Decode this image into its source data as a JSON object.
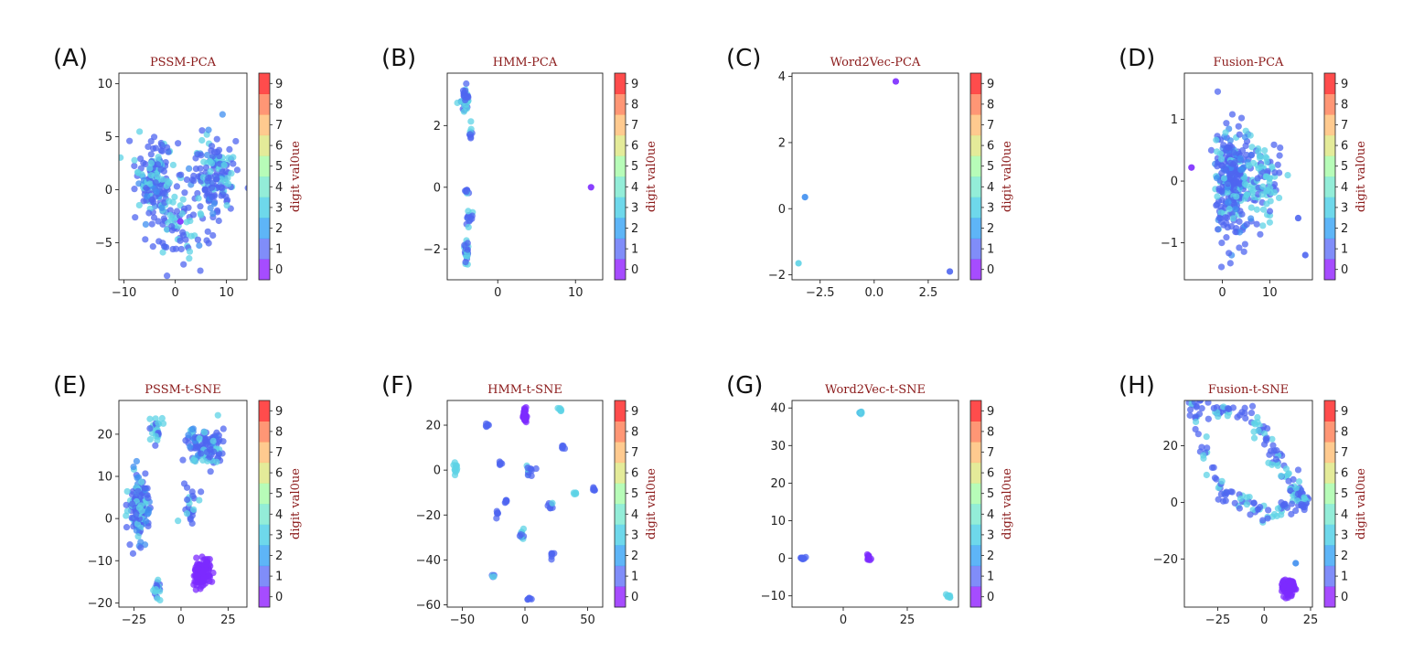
{
  "figure": {
    "colorbar_label": "digit val0ue",
    "colorbar_ticks": [
      "0",
      "1",
      "2",
      "3",
      "4",
      "5",
      "6",
      "7",
      "8",
      "9"
    ],
    "colormap": [
      "#8000ff",
      "#4a5cf7",
      "#1996f3",
      "#30c8e2",
      "#65e5c8",
      "#98fb9a",
      "#d8e26d",
      "#ffb360",
      "#ff6a3a",
      "#ff0000"
    ],
    "title_color": "#8b1a1a",
    "point_palette": {
      "violet": "#7c2bff",
      "blue": "#4f66f0",
      "midblue": "#3f8ff0",
      "cyan": "#5ed3e6"
    }
  },
  "chart_data": [
    {
      "panel": "(A)",
      "title": "PSSM-PCA",
      "type": "scatter",
      "xlim": [
        -11,
        14
      ],
      "ylim": [
        -8.5,
        11
      ],
      "xticks": [
        -10,
        0,
        10
      ],
      "yticks": [
        -5,
        0,
        5,
        10
      ],
      "clusters": [
        {
          "center": [
            -4,
            1
          ],
          "spread": [
            3.5,
            3.2
          ],
          "count": 170,
          "mix": {
            "blue": 0.5,
            "cyan": 0.35,
            "midblue": 0.15
          }
        },
        {
          "center": [
            7,
            1
          ],
          "spread": [
            4,
            4
          ],
          "count": 160,
          "mix": {
            "blue": 0.6,
            "cyan": 0.25,
            "midblue": 0.15
          }
        },
        {
          "center": [
            0,
            -4
          ],
          "spread": [
            5,
            2.5
          ],
          "count": 60,
          "mix": {
            "blue": 0.6,
            "cyan": 0.4
          }
        }
      ],
      "points": [
        {
          "x": 1,
          "y": -3,
          "c": "violet"
        }
      ]
    },
    {
      "panel": "(B)",
      "title": "HMM-PCA",
      "type": "scatter",
      "xlim": [
        -6.5,
        13.5
      ],
      "ylim": [
        -3,
        3.7
      ],
      "xticks": [
        0,
        10
      ],
      "yticks": [
        -2,
        0,
        2
      ],
      "clusters": [
        {
          "center": [
            -4.2,
            2.9
          ],
          "spread": [
            0.45,
            0.35
          ],
          "count": 40,
          "mix": {
            "blue": 0.7,
            "cyan": 0.3
          }
        },
        {
          "center": [
            -3.5,
            1.7
          ],
          "spread": [
            0.3,
            0.25
          ],
          "count": 10,
          "mix": {
            "blue": 0.7,
            "cyan": 0.3
          }
        },
        {
          "center": [
            -4.0,
            -0.1
          ],
          "spread": [
            0.3,
            0.15
          ],
          "count": 8,
          "mix": {
            "blue": 0.6,
            "cyan": 0.4
          }
        },
        {
          "center": [
            -3.8,
            -1.0
          ],
          "spread": [
            0.4,
            0.3
          ],
          "count": 14,
          "mix": {
            "blue": 0.7,
            "cyan": 0.3
          }
        },
        {
          "center": [
            -4.1,
            -2.1
          ],
          "spread": [
            0.35,
            0.35
          ],
          "count": 30,
          "mix": {
            "blue": 0.6,
            "cyan": 0.4
          }
        }
      ],
      "points": [
        {
          "x": 12,
          "y": 0,
          "c": "violet"
        }
      ]
    },
    {
      "panel": "(C)",
      "title": "Word2Vec-PCA",
      "type": "scatter",
      "xlim": [
        -3.8,
        3.9
      ],
      "ylim": [
        -2.15,
        4.1
      ],
      "xticks": [
        -2.5,
        0.0,
        2.5
      ],
      "yticks": [
        -2,
        0,
        2,
        4
      ],
      "clusters": [],
      "points": [
        {
          "x": 1.0,
          "y": 3.85,
          "c": "violet"
        },
        {
          "x": -3.2,
          "y": 0.35,
          "c": "midblue"
        },
        {
          "x": -3.5,
          "y": -1.65,
          "c": "cyan"
        },
        {
          "x": 3.5,
          "y": -1.9,
          "c": "blue"
        }
      ]
    },
    {
      "panel": "(D)",
      "title": "Fusion-PCA",
      "type": "scatter",
      "xlim": [
        -8,
        19
      ],
      "ylim": [
        -1.6,
        1.75
      ],
      "xticks": [
        0,
        10
      ],
      "yticks": [
        -1,
        0,
        1
      ],
      "clusters": [
        {
          "center": [
            2,
            0.0
          ],
          "spread": [
            3.5,
            0.75
          ],
          "count": 300,
          "mix": {
            "blue": 0.65,
            "cyan": 0.2,
            "midblue": 0.15
          }
        },
        {
          "center": [
            9,
            0.0
          ],
          "spread": [
            3.5,
            0.6
          ],
          "count": 90,
          "mix": {
            "cyan": 0.6,
            "blue": 0.4
          }
        }
      ],
      "points": [
        {
          "x": -6.5,
          "y": 0.22,
          "c": "violet"
        },
        {
          "x": 17.5,
          "y": -1.2,
          "c": "blue"
        },
        {
          "x": 16,
          "y": -0.6,
          "c": "blue"
        }
      ]
    },
    {
      "panel": "(E)",
      "title": "PSSM-t-SNE",
      "type": "scatter",
      "xlim": [
        -33,
        35
      ],
      "ylim": [
        -21,
        28
      ],
      "xticks": [
        -25,
        0,
        25
      ],
      "yticks": [
        -20,
        -10,
        0,
        10,
        20
      ],
      "clusters": [
        {
          "center": [
            -22,
            3
          ],
          "spread": [
            5,
            7
          ],
          "count": 150,
          "mix": {
            "blue": 0.55,
            "cyan": 0.3,
            "midblue": 0.15
          }
        },
        {
          "center": [
            -13,
            21
          ],
          "spread": [
            3,
            3
          ],
          "count": 25,
          "mix": {
            "cyan": 0.7,
            "blue": 0.3
          }
        },
        {
          "center": [
            13,
            17
          ],
          "spread": [
            9,
            4
          ],
          "count": 110,
          "mix": {
            "blue": 0.6,
            "cyan": 0.25,
            "midblue": 0.15
          }
        },
        {
          "center": [
            -13,
            -17
          ],
          "spread": [
            2,
            2
          ],
          "count": 20,
          "mix": {
            "cyan": 0.7,
            "blue": 0.3
          }
        },
        {
          "center": [
            5,
            2
          ],
          "spread": [
            4,
            4
          ],
          "count": 25,
          "mix": {
            "blue": 0.6,
            "cyan": 0.4
          }
        },
        {
          "center": [
            11,
            -13
          ],
          "spread": [
            3.5,
            3.5
          ],
          "count": 130,
          "mix": {
            "violet": 1.0
          }
        }
      ],
      "points": []
    },
    {
      "panel": "(F)",
      "title": "HMM-t-SNE",
      "type": "scatter",
      "xlim": [
        -62,
        62
      ],
      "ylim": [
        -61,
        31
      ],
      "xticks": [
        -50,
        0,
        50
      ],
      "yticks": [
        -60,
        -40,
        -20,
        0,
        20
      ],
      "clusters": [
        {
          "center": [
            0,
            24
          ],
          "spread": [
            1.5,
            2.5
          ],
          "count": 40,
          "mix": {
            "violet": 1.0
          }
        },
        {
          "center": [
            -55,
            1
          ],
          "spread": [
            1.5,
            3
          ],
          "count": 12,
          "mix": {
            "cyan": 1.0
          }
        },
        {
          "center": [
            -30,
            20
          ],
          "spread": [
            1.2,
            1
          ],
          "count": 6,
          "mix": {
            "blue": 1.0
          }
        },
        {
          "center": [
            28,
            27
          ],
          "spread": [
            1.2,
            1
          ],
          "count": 6,
          "mix": {
            "cyan": 1.0
          }
        },
        {
          "center": [
            30,
            10
          ],
          "spread": [
            1.2,
            1
          ],
          "count": 6,
          "mix": {
            "blue": 1.0
          }
        },
        {
          "center": [
            -20,
            3
          ],
          "spread": [
            1.2,
            1
          ],
          "count": 6,
          "mix": {
            "blue": 1.0
          }
        },
        {
          "center": [
            5,
            -1
          ],
          "spread": [
            3,
            2.5
          ],
          "count": 12,
          "mix": {
            "blue": 0.6,
            "cyan": 0.4
          }
        },
        {
          "center": [
            -15,
            -14
          ],
          "spread": [
            1.2,
            1
          ],
          "count": 6,
          "mix": {
            "blue": 1.0
          }
        },
        {
          "center": [
            20,
            -16
          ],
          "spread": [
            2,
            2
          ],
          "count": 8,
          "mix": {
            "blue": 0.7,
            "cyan": 0.3
          }
        },
        {
          "center": [
            40,
            -10
          ],
          "spread": [
            1.2,
            1
          ],
          "count": 5,
          "mix": {
            "cyan": 1.0
          }
        },
        {
          "center": [
            55,
            -9
          ],
          "spread": [
            1.2,
            1.5
          ],
          "count": 6,
          "mix": {
            "blue": 1.0
          }
        },
        {
          "center": [
            -22,
            -20
          ],
          "spread": [
            1.2,
            2
          ],
          "count": 6,
          "mix": {
            "blue": 1.0
          }
        },
        {
          "center": [
            -3,
            -29
          ],
          "spread": [
            2.5,
            3
          ],
          "count": 10,
          "mix": {
            "blue": 0.6,
            "cyan": 0.4
          }
        },
        {
          "center": [
            22,
            -38
          ],
          "spread": [
            1.5,
            1.5
          ],
          "count": 6,
          "mix": {
            "blue": 1.0
          }
        },
        {
          "center": [
            -25,
            -47
          ],
          "spread": [
            1.2,
            1.5
          ],
          "count": 6,
          "mix": {
            "blue": 0.5,
            "cyan": 0.5
          }
        },
        {
          "center": [
            3,
            -57
          ],
          "spread": [
            1.5,
            1
          ],
          "count": 6,
          "mix": {
            "blue": 1.0
          }
        }
      ],
      "points": []
    },
    {
      "panel": "(G)",
      "title": "Word2Vec-t-SNE",
      "type": "scatter",
      "xlim": [
        -20,
        45
      ],
      "ylim": [
        -13,
        42
      ],
      "xticks": [
        0,
        25
      ],
      "yticks": [
        -10,
        0,
        10,
        20,
        30,
        40
      ],
      "clusters": [
        {
          "center": [
            7,
            38.7
          ],
          "spread": [
            0.8,
            0.5
          ],
          "count": 8,
          "mix": {
            "cyan": 0.6,
            "midblue": 0.4
          }
        },
        {
          "center": [
            -16,
            0
          ],
          "spread": [
            1,
            0.3
          ],
          "count": 10,
          "mix": {
            "blue": 1.0
          }
        },
        {
          "center": [
            10,
            0
          ],
          "spread": [
            1,
            1
          ],
          "count": 14,
          "mix": {
            "violet": 1.0
          }
        },
        {
          "center": [
            41,
            -10
          ],
          "spread": [
            0.8,
            0.6
          ],
          "count": 8,
          "mix": {
            "cyan": 1.0
          }
        }
      ],
      "points": []
    },
    {
      "panel": "(H)",
      "title": "Fusion-t-SNE",
      "type": "scatter",
      "xlim": [
        -43,
        26
      ],
      "ylim": [
        -37,
        36
      ],
      "xticks": [
        -25,
        0,
        25
      ],
      "yticks": [
        -20,
        0,
        20
      ],
      "clusters": [
        {
          "center": [
            13,
            -30
          ],
          "spread": [
            3,
            2.5
          ],
          "count": 110,
          "mix": {
            "violet": 1.0
          }
        }
      ],
      "ring": {
        "points": [
          [
            -40,
            34
          ],
          [
            -7,
            31
          ],
          [
            15,
            6
          ],
          [
            22,
            0
          ],
          [
            -2,
            -4
          ],
          [
            -24,
            5
          ],
          [
            -40,
            34
          ]
        ],
        "count": 220,
        "jitter": 1.8,
        "mix": {
          "blue": 0.65,
          "cyan": 0.35
        }
      },
      "points": [
        {
          "x": 17,
          "y": -21.5,
          "c": "midblue"
        }
      ]
    }
  ]
}
